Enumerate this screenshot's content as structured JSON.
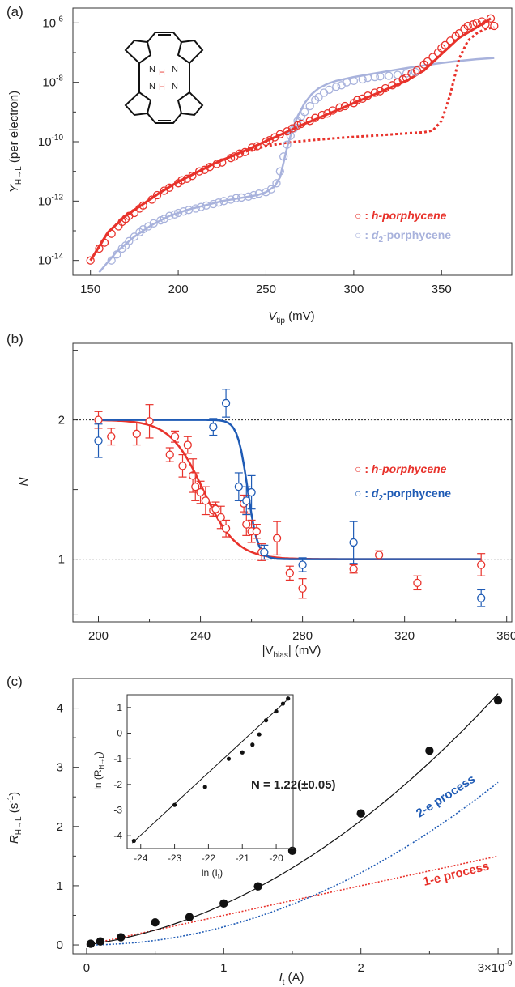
{
  "colors": {
    "red": "#e8322b",
    "lavender": "#a8b2dc",
    "blue": "#1f5bb5",
    "black": "#111111"
  },
  "panel_a": {
    "label": "(a)",
    "ylabel_main": "Y",
    "ylabel_sub": "H→L",
    "ylabel_rest": " (per electron)",
    "xlabel_main": "V",
    "xlabel_sub": "tip",
    "xlabel_rest": " (mV)",
    "legend": [
      {
        "glyph": "○ : ",
        "prefix": "",
        "sub": "",
        "suffix": "h-porphycene",
        "color": "red"
      },
      {
        "glyph": "○ : ",
        "prefix": "d",
        "sub": "2",
        "suffix": "-porphycene",
        "color": "lavender"
      }
    ],
    "molecule": {
      "h1": "H",
      "n1": "N",
      "h2": "H",
      "n2": "N",
      "n3": "N",
      "n4": "N"
    }
  },
  "panel_b": {
    "label": "(b)",
    "ylabel": "N",
    "xlabel_pre": "|V",
    "xlabel_sub": "bias",
    "xlabel_post": "| (mV)",
    "legend": [
      {
        "glyph": "○ : ",
        "prefix": "",
        "sub": "",
        "suffix": "h-porphycene",
        "color": "red"
      },
      {
        "glyph": "○ : ",
        "prefix": "d",
        "sub": "2",
        "suffix": "-porphycene",
        "color": "blue"
      }
    ]
  },
  "panel_c": {
    "label": "(c)",
    "ylabel_main": "R",
    "ylabel_sub": "H→L",
    "ylabel_rest": " (s",
    "ylabel_sup": "-1",
    "ylabel_end": ")",
    "xlabel_main": "I",
    "xlabel_sub": "t",
    "xlabel_rest": " (A)",
    "label_2e": "2-e process",
    "label_1e": "1-e process",
    "inset_ylabel": "ln (R",
    "inset_ysub": "H→L",
    "inset_yend": ")",
    "inset_xlabel": "ln (I",
    "inset_xsub": "t",
    "inset_xend": ")",
    "annotation": "N = 1.22(±0.05)"
  },
  "chart_data": [
    {
      "type": "scatter",
      "panel": "a",
      "x_range": [
        140,
        390
      ],
      "y_range_log10": [
        -14.5,
        -5.5
      ],
      "y_scale": "log",
      "xticks": [
        150,
        200,
        250,
        300,
        350
      ],
      "yticks": [
        "10^-14",
        "10^-12",
        "10^-10",
        "10^-8",
        "10^-6"
      ],
      "series": [
        {
          "name": "h-porphycene",
          "color": "red",
          "x": [
            150,
            155,
            158,
            162,
            166,
            168,
            170,
            172,
            175,
            178,
            180,
            185,
            188,
            192,
            195,
            200,
            202,
            205,
            208,
            212,
            215,
            218,
            222,
            225,
            230,
            232,
            235,
            238,
            242,
            245,
            250,
            252,
            255,
            258,
            262,
            265,
            268,
            270,
            275,
            278,
            282,
            285,
            288,
            292,
            295,
            300,
            302,
            305,
            308,
            312,
            315,
            318,
            322,
            325,
            328,
            330,
            333,
            336,
            340,
            342,
            345,
            348,
            350,
            352,
            355,
            358,
            360,
            363,
            365,
            368,
            370,
            373,
            375,
            378,
            380
          ],
          "log10_y": [
            -14.0,
            -13.6,
            -13.4,
            -13.1,
            -12.85,
            -12.7,
            -12.6,
            -12.5,
            -12.4,
            -12.25,
            -12.15,
            -11.95,
            -11.8,
            -11.65,
            -11.55,
            -11.4,
            -11.3,
            -11.25,
            -11.15,
            -11.0,
            -10.95,
            -10.85,
            -10.75,
            -10.7,
            -10.55,
            -10.5,
            -10.4,
            -10.35,
            -10.2,
            -10.15,
            -10.0,
            -9.95,
            -9.85,
            -9.75,
            -9.65,
            -9.55,
            -9.45,
            -9.4,
            -9.3,
            -9.2,
            -9.1,
            -9.05,
            -8.95,
            -8.85,
            -8.8,
            -8.7,
            -8.6,
            -8.55,
            -8.45,
            -8.35,
            -8.3,
            -8.2,
            -8.1,
            -8.0,
            -7.9,
            -7.85,
            -7.7,
            -7.6,
            -7.4,
            -7.3,
            -7.15,
            -7.0,
            -6.85,
            -6.75,
            -6.6,
            -6.45,
            -6.35,
            -6.2,
            -6.1,
            -6.05,
            -6.0,
            -5.95,
            -6.05,
            -5.85,
            -6.1
          ],
          "fit_log10": {
            "x": [
              150,
              160,
              170,
              180,
              190,
              200,
              210,
              220,
              230,
              240,
              250,
              260,
              270,
              280,
              290,
              300,
              310,
              320,
              330,
              340,
              350,
              360,
              370,
              378
            ],
            "y": [
              -14.0,
              -13.05,
              -12.5,
              -12.1,
              -11.7,
              -11.35,
              -11.05,
              -10.75,
              -10.5,
              -10.25,
              -9.98,
              -9.72,
              -9.45,
              -9.2,
              -8.95,
              -8.7,
              -8.45,
              -8.2,
              -7.95,
              -7.6,
              -7.05,
              -6.5,
              -6.15,
              -5.85
            ]
          },
          "dashed_log10": {
            "x": [
              150,
              160,
              170,
              180,
              190,
              200,
              210,
              220,
              230,
              240,
              250,
              260,
              270,
              280,
              290,
              300,
              310,
              320,
              330,
              340,
              345,
              350,
              355,
              360,
              365,
              370,
              375,
              380
            ],
            "y": [
              -14.0,
              -13.05,
              -12.5,
              -12.1,
              -11.7,
              -11.35,
              -11.05,
              -10.75,
              -10.5,
              -10.3,
              -10.15,
              -10.05,
              -9.98,
              -9.93,
              -9.88,
              -9.84,
              -9.8,
              -9.76,
              -9.72,
              -9.68,
              -9.62,
              -9.3,
              -8.4,
              -7.2,
              -6.6,
              -6.35,
              -6.2,
              -6.15
            ]
          }
        },
        {
          "name": "d2-porphycene",
          "color": "lavender",
          "x": [
            162,
            165,
            168,
            170,
            172,
            175,
            178,
            180,
            183,
            186,
            190,
            192,
            195,
            198,
            200,
            203,
            206,
            210,
            213,
            216,
            220,
            223,
            226,
            230,
            233,
            236,
            240,
            243,
            246,
            250,
            253,
            256,
            258,
            260,
            262,
            264,
            266,
            268,
            270,
            272,
            275,
            278,
            280,
            283,
            286,
            290,
            293,
            296,
            300,
            305,
            308,
            312,
            315,
            320,
            325,
            330,
            335
          ],
          "log10_y": [
            -14.0,
            -13.8,
            -13.6,
            -13.5,
            -13.35,
            -13.2,
            -13.05,
            -12.95,
            -12.85,
            -12.75,
            -12.65,
            -12.6,
            -12.5,
            -12.45,
            -12.4,
            -12.35,
            -12.3,
            -12.25,
            -12.2,
            -12.15,
            -12.1,
            -12.05,
            -12.0,
            -11.95,
            -11.9,
            -11.88,
            -11.85,
            -11.8,
            -11.75,
            -11.7,
            -11.6,
            -11.4,
            -11.0,
            -10.5,
            -10.1,
            -9.8,
            -9.55,
            -9.3,
            -9.15,
            -9.0,
            -8.8,
            -8.6,
            -8.5,
            -8.35,
            -8.25,
            -8.15,
            -8.1,
            -8.0,
            -7.95,
            -7.9,
            -7.85,
            -7.82,
            -7.8,
            -7.78,
            -7.75,
            -7.7,
            -7.65
          ],
          "fit_log10": {
            "x": [
              155,
              165,
              175,
              185,
              195,
              205,
              215,
              225,
              235,
              245,
              250,
              255,
              258,
              260,
              262,
              265,
              268,
              272,
              276,
              280,
              285,
              290,
              300,
              310,
              320,
              330,
              340,
              350,
              360,
              370,
              380
            ],
            "y": [
              -14.4,
              -13.7,
              -13.2,
              -12.8,
              -12.5,
              -12.3,
              -12.15,
              -12.0,
              -11.9,
              -11.8,
              -11.7,
              -11.5,
              -11.2,
              -10.7,
              -10.2,
              -9.6,
              -9.15,
              -8.7,
              -8.4,
              -8.2,
              -8.05,
              -7.95,
              -7.82,
              -7.72,
              -7.62,
              -7.52,
              -7.43,
              -7.35,
              -7.28,
              -7.22,
              -7.18
            ]
          }
        }
      ]
    },
    {
      "type": "scatter",
      "panel": "b",
      "x_range": [
        190,
        362
      ],
      "y_range": [
        0.55,
        2.55
      ],
      "xticks": [
        200,
        240,
        280,
        320,
        360
      ],
      "yticks": [
        1,
        2
      ],
      "reference_lines": [
        1,
        2
      ],
      "series": [
        {
          "name": "h-porphycene",
          "color": "red",
          "x": [
            200,
            205,
            215,
            220,
            228,
            230,
            233,
            235,
            237,
            238,
            240,
            242,
            245,
            246,
            248,
            250,
            257,
            258,
            260,
            262,
            264,
            270,
            275,
            280,
            300,
            310,
            325,
            350
          ],
          "y": [
            2.0,
            1.88,
            1.9,
            1.99,
            1.75,
            1.88,
            1.67,
            1.82,
            1.6,
            1.52,
            1.48,
            1.42,
            1.35,
            1.36,
            1.3,
            1.22,
            1.4,
            1.25,
            1.2,
            1.2,
            1.05,
            1.15,
            0.9,
            0.79,
            0.93,
            1.03,
            0.83,
            0.96
          ],
          "err": [
            0.06,
            0.06,
            0.08,
            0.12,
            0.05,
            0.04,
            0.08,
            0.06,
            0.12,
            0.1,
            0.08,
            0.1,
            0.04,
            0.05,
            0.08,
            0.06,
            0.06,
            0.08,
            0.08,
            0.05,
            0.06,
            0.12,
            0.05,
            0.07,
            0.03,
            0.03,
            0.05,
            0.08
          ],
          "fit": {
            "midpoint": 241,
            "width": 6.5,
            "lower": 1,
            "upper": 2
          }
        },
        {
          "name": "d2-porphycene",
          "color": "blue",
          "x": [
            200,
            245,
            250,
            255,
            258,
            260,
            265,
            280,
            300,
            350
          ],
          "y": [
            1.85,
            1.95,
            2.12,
            1.52,
            1.42,
            1.48,
            1.05,
            0.96,
            1.12,
            0.72
          ],
          "err": [
            0.12,
            0.06,
            0.1,
            0.1,
            0.1,
            0.12,
            0.05,
            0.05,
            0.15,
            0.06
          ],
          "fit": {
            "midpoint": 258.5,
            "width": 2.0,
            "lower": 1,
            "upper": 2
          }
        }
      ]
    },
    {
      "type": "scatter",
      "panel": "c",
      "x_range": [
        -1e-10,
        3.1e-09
      ],
      "y_range": [
        -0.15,
        4.5
      ],
      "xticks": [
        0,
        1,
        2
      ],
      "xtick_end_label": "3×10",
      "xtick_end_sup": "-9",
      "yticks": [
        0,
        1,
        2,
        3,
        4
      ],
      "series": [
        {
          "name": "data",
          "color": "black",
          "x_nA": [
            0.03,
            0.1,
            0.25,
            0.5,
            0.75,
            1.0,
            1.25,
            1.5,
            2.0,
            2.5,
            3.0
          ],
          "y": [
            0.02,
            0.06,
            0.13,
            0.38,
            0.47,
            0.7,
            0.99,
            1.59,
            2.22,
            3.28,
            4.13
          ]
        }
      ],
      "fit_curve": {
        "model": "a*I + b*I^2",
        "a": 0.32,
        "b": 0.365
      },
      "process_1e": {
        "model": "a*I",
        "a": 0.5
      },
      "process_2e": {
        "model": "b*I^2",
        "b": 0.305
      },
      "inset": {
        "x_range": [
          -24.4,
          -19.5
        ],
        "y_range": [
          -4.5,
          1.5
        ],
        "xticks": [
          -24,
          -23,
          -22,
          -21,
          -20
        ],
        "yticks": [
          -4,
          -3,
          -2,
          -1,
          0,
          1
        ],
        "x": [
          -24.2,
          -23.0,
          -22.1,
          -21.4,
          -21.0,
          -20.7,
          -20.5,
          -20.3,
          -20.0,
          -19.8,
          -19.65
        ],
        "y": [
          -4.2,
          -2.8,
          -2.1,
          -1.0,
          -0.75,
          -0.45,
          -0.05,
          0.5,
          0.85,
          1.15,
          1.35
        ],
        "fit": {
          "slope": 1.22,
          "intercept": 25.3
        }
      }
    }
  ]
}
